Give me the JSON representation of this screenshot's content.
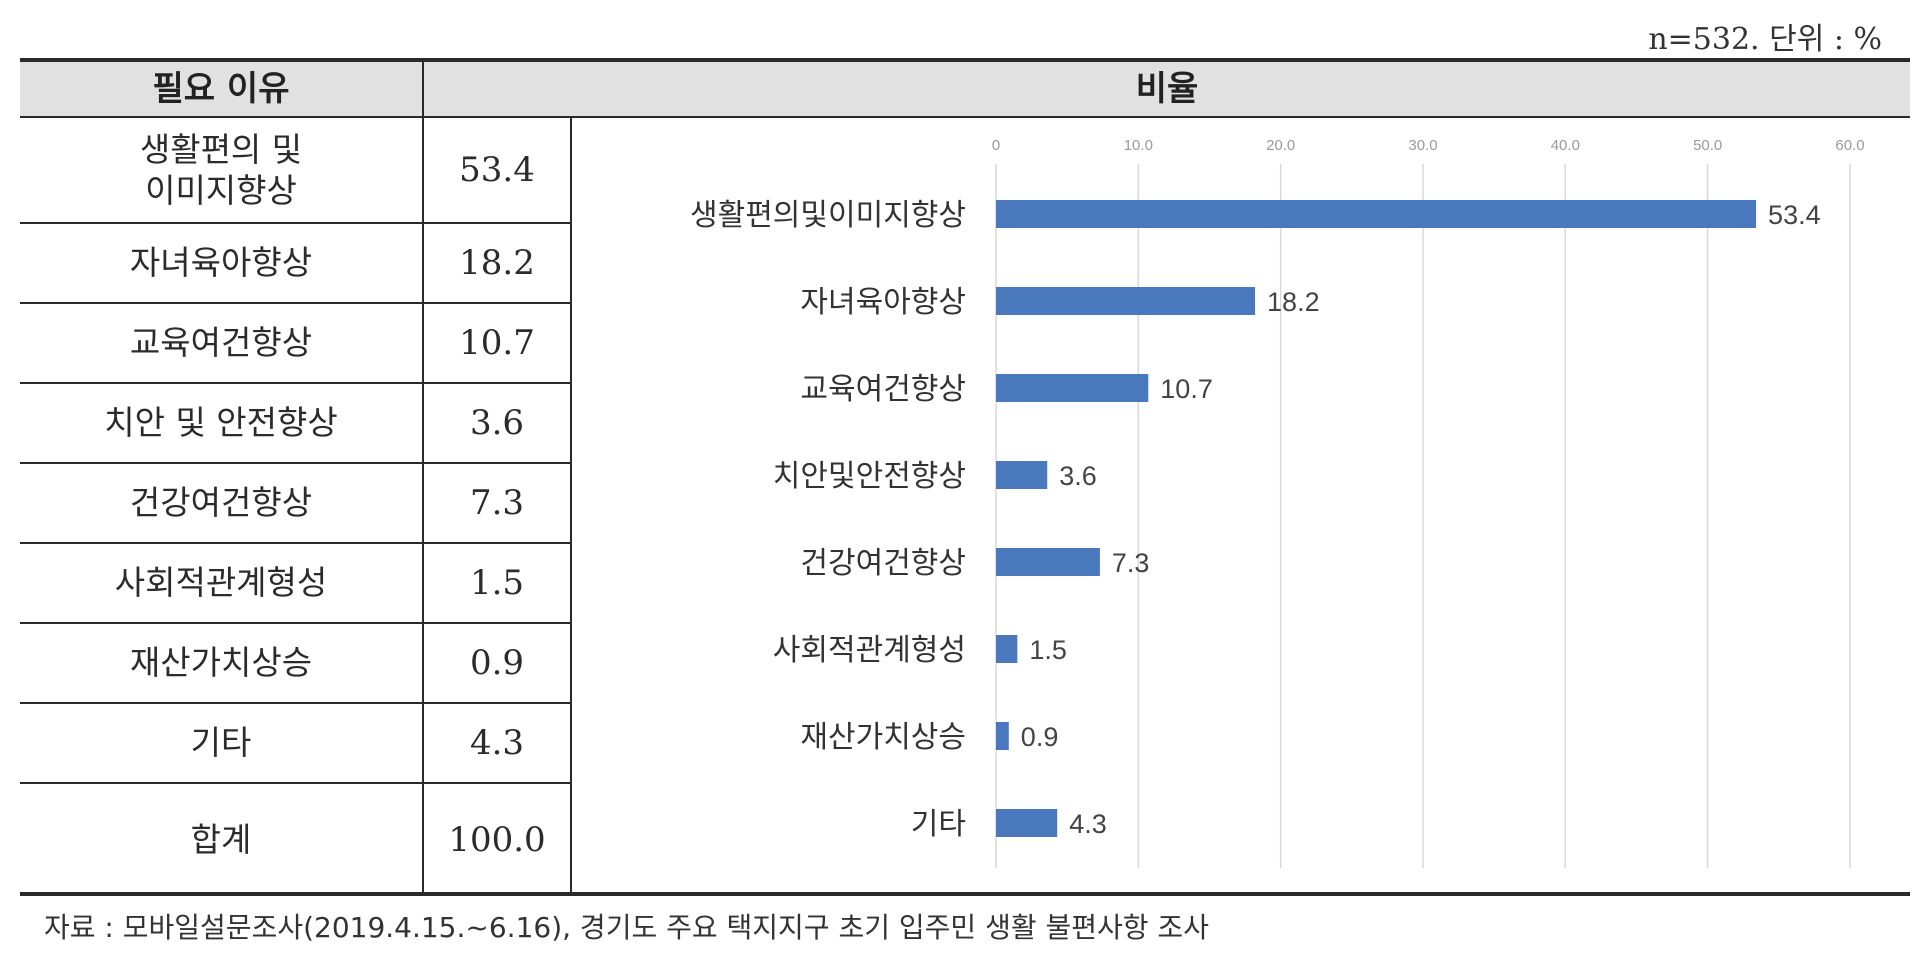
{
  "unit_note": "n=532. 단위 : %",
  "table": {
    "header_reason": "필요 이유",
    "header_ratio": "비율",
    "rows": [
      {
        "reason_line1": "생활편의 및",
        "reason_line2": "이미지향상",
        "value": "53.4"
      },
      {
        "reason_line1": "자녀육아향상",
        "reason_line2": "",
        "value": "18.2"
      },
      {
        "reason_line1": "교육여건향상",
        "reason_line2": "",
        "value": "10.7"
      },
      {
        "reason_line1": "치안 및 안전향상",
        "reason_line2": "",
        "value": "3.6"
      },
      {
        "reason_line1": "건강여건향상",
        "reason_line2": "",
        "value": "7.3"
      },
      {
        "reason_line1": "사회적관계형성",
        "reason_line2": "",
        "value": "1.5"
      },
      {
        "reason_line1": "재산가치상승",
        "reason_line2": "",
        "value": "0.9"
      },
      {
        "reason_line1": "기타",
        "reason_line2": "",
        "value": "4.3"
      },
      {
        "reason_line1": "합계",
        "reason_line2": "",
        "value": "100.0"
      }
    ]
  },
  "chart_data": {
    "type": "bar",
    "orientation": "horizontal",
    "categories": [
      "생활편의및이미지향상",
      "자녀육아향상",
      "교육여건향상",
      "치안및안전향상",
      "건강여건향상",
      "사회적관계형성",
      "재산가치상승",
      "기타"
    ],
    "values": [
      53.4,
      18.2,
      10.7,
      3.6,
      7.3,
      1.5,
      0.9,
      4.3
    ],
    "data_labels": [
      "53.4",
      "18.2",
      "10.7",
      "3.6",
      "7.3",
      "1.5",
      "0.9",
      "4.3"
    ],
    "xlim": [
      0,
      60
    ],
    "x_ticks": [
      0,
      10,
      20,
      30,
      40,
      50,
      60
    ],
    "x_tick_labels": [
      "0",
      "10.0",
      "20.0",
      "30.0",
      "40.0",
      "50.0",
      "60.0"
    ],
    "axis_position": "top",
    "grid": true,
    "bar_color": "#4a78bd"
  },
  "source_note": "자료 : 모바일설문조사(2019.4.15.~6.16), 경기도 주요 택지지구 초기 입주민 생활 불편사항 조사"
}
